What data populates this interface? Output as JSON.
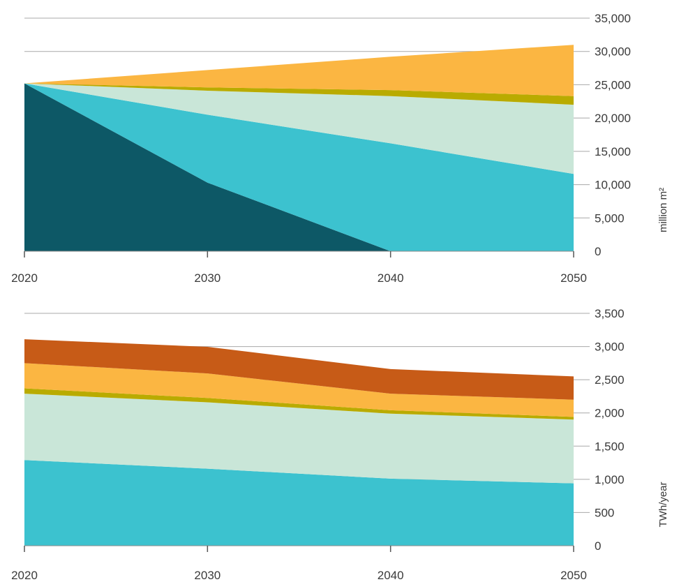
{
  "chart_data": [
    {
      "type": "area",
      "stacked": true,
      "ylabel": "million m²",
      "ylim": [
        0,
        35000
      ],
      "yticks": [
        "0",
        "5,000",
        "10,000",
        "15,000",
        "20,000",
        "25,000",
        "30,000",
        "35,000"
      ],
      "y_axis_position": "right",
      "x": [
        2020,
        2030,
        2040,
        2050
      ],
      "xticks": [
        "2020",
        "2030",
        "2040",
        "2050"
      ],
      "legend": "none",
      "series": [
        {
          "color": "#0d5866",
          "values": [
            25200,
            10300,
            0,
            0
          ]
        },
        {
          "color": "#3cc2cf",
          "values": [
            0,
            10200,
            16200,
            11600
          ]
        },
        {
          "color": "#c9e6d8",
          "values": [
            0,
            3600,
            7100,
            10400
          ]
        },
        {
          "color": "#b9ab00",
          "values": [
            0,
            500,
            900,
            1300
          ]
        },
        {
          "color": "#fbb642",
          "values": [
            0,
            2600,
            5000,
            7700
          ]
        }
      ]
    },
    {
      "type": "area",
      "stacked": true,
      "ylabel": "TWh/year",
      "ylim": [
        0,
        3500
      ],
      "yticks": [
        "0",
        "500",
        "1,000",
        "1,500",
        "2,000",
        "2,500",
        "3,000",
        "3,500"
      ],
      "y_axis_position": "right",
      "x": [
        2020,
        2030,
        2040,
        2050
      ],
      "xticks": [
        "2020",
        "2030",
        "2040",
        "2050"
      ],
      "legend": "none",
      "series": [
        {
          "color": "#3cc2cf",
          "values": [
            1290,
            1160,
            1010,
            940
          ]
        },
        {
          "color": "#c9e6d8",
          "values": [
            1000,
            1000,
            980,
            960
          ]
        },
        {
          "color": "#b9ab00",
          "values": [
            80,
            65,
            50,
            40
          ]
        },
        {
          "color": "#fbb642",
          "values": [
            380,
            370,
            250,
            260
          ]
        },
        {
          "color": "#c75b17",
          "values": [
            360,
            400,
            370,
            350
          ]
        }
      ]
    }
  ]
}
